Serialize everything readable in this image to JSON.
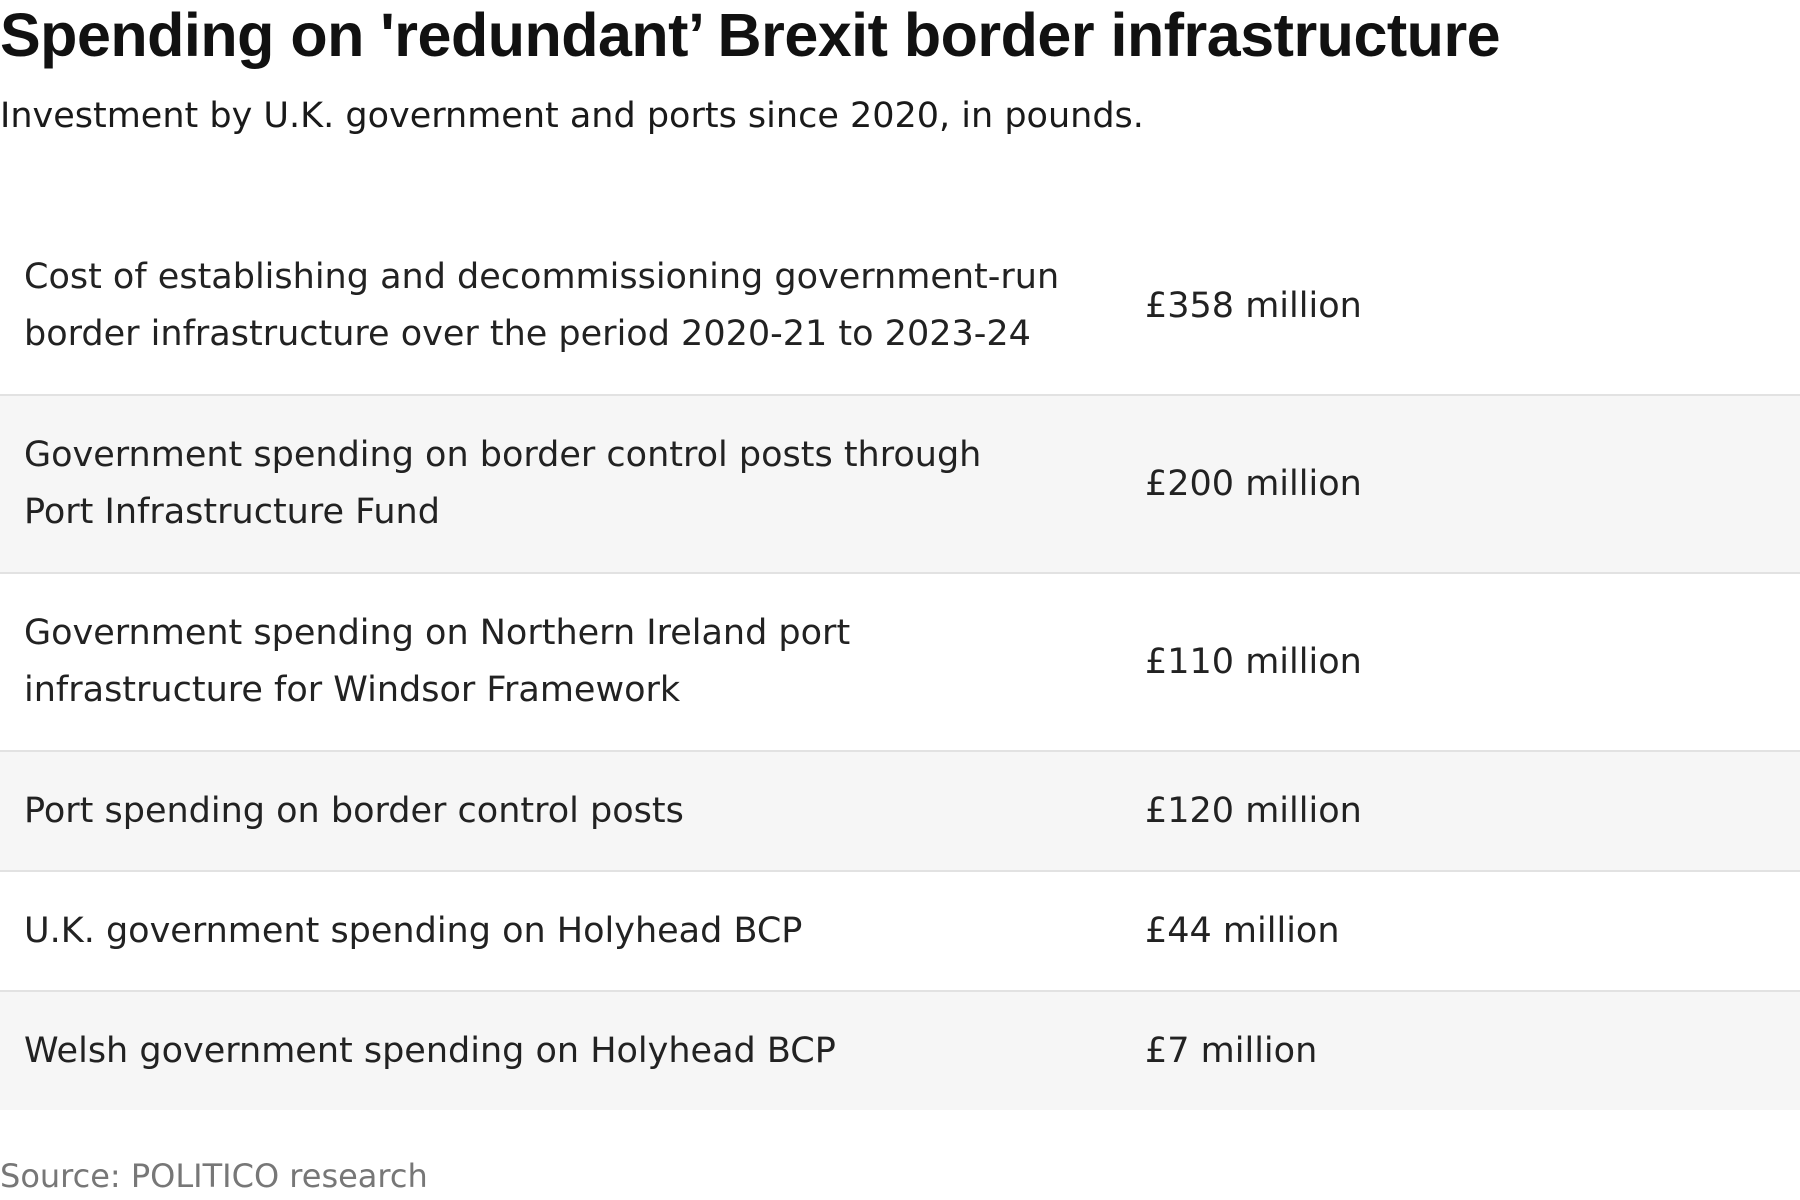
{
  "header": {
    "title": "Spending on 'redundant’ Brexit border infrastructure",
    "subtitle": "Investment by U.K. government and ports since 2020, in pounds."
  },
  "chart_data": {
    "type": "table",
    "rows": [
      {
        "label": "Cost of establishing and decommissioning government-run border infrastructure over the period 2020-21 to 2023-24",
        "value_text": "£358 million",
        "value": 358
      },
      {
        "label": "Government spending on border control posts through Port Infrastructure Fund",
        "value_text": "£200 million",
        "value": 200
      },
      {
        "label": "Government spending on Northern Ireland port infrastructure for Windsor Framework",
        "value_text": "£110 million",
        "value": 110
      },
      {
        "label": "Port spending on border control posts",
        "value_text": "£120 million",
        "value": 120
      },
      {
        "label": "U.K. government spending on Holyhead BCP",
        "value_text": "£44 million",
        "value": 44
      },
      {
        "label": "Welsh government spending on Holyhead BCP",
        "value_text": "£7 million",
        "value": 7
      }
    ],
    "unit": "£ million",
    "row_banding": true,
    "colors": {
      "text": "#222222",
      "band": "#f6f6f6",
      "divider": "#e2e2e2",
      "source": "#777777"
    }
  },
  "footer": {
    "source": "Source: POLITICO research"
  }
}
